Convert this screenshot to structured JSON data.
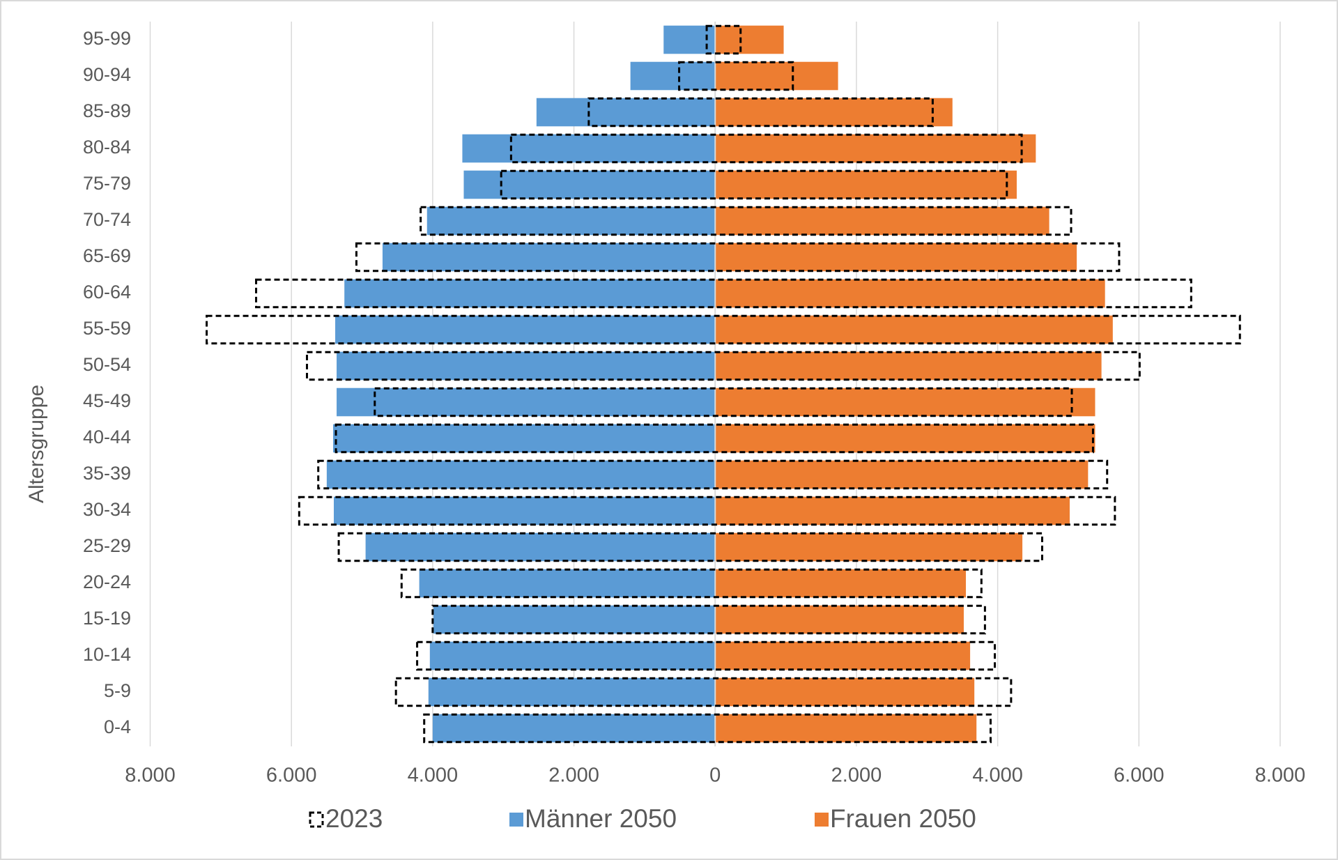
{
  "chart_data": {
    "type": "population-pyramid",
    "y_axis_label": "Altersgruppe",
    "categories": [
      "95-99",
      "90-94",
      "85-89",
      "80-84",
      "75-79",
      "70-74",
      "65-69",
      "60-64",
      "55-59",
      "50-54",
      "45-49",
      "40-44",
      "35-39",
      "30-34",
      "25-29",
      "20-24",
      "15-19",
      "10-14",
      "5-9",
      "0-4"
    ],
    "series": [
      {
        "name": "2023",
        "color": "#000000",
        "dashed": true,
        "values": [
          [
            -120,
            360
          ],
          [
            -510,
            1100
          ],
          [
            -1790,
            3080
          ],
          [
            -2890,
            4340
          ],
          [
            -3030,
            4130
          ],
          [
            -4170,
            5040
          ],
          [
            -5080,
            5720
          ],
          [
            -6500,
            6740
          ],
          [
            -7200,
            7430
          ],
          [
            -5780,
            6010
          ],
          [
            -4820,
            5050
          ],
          [
            -5370,
            5350
          ],
          [
            -5620,
            5550
          ],
          [
            -5890,
            5660
          ],
          [
            -5330,
            4630
          ],
          [
            -4440,
            3770
          ],
          [
            -4000,
            3820
          ],
          [
            -4220,
            3960
          ],
          [
            -4520,
            4190
          ],
          [
            -4120,
            3900
          ]
        ]
      },
      {
        "name": "Männer 2050",
        "color": "#5b9bd5",
        "values": [
          -730,
          -1200,
          -2530,
          -3580,
          -3560,
          -4080,
          -4710,
          -5250,
          -5380,
          -5360,
          -5360,
          -5410,
          -5500,
          -5400,
          -4950,
          -4190,
          -3990,
          -4040,
          -4060,
          -4000
        ]
      },
      {
        "name": "Frauen 2050",
        "color": "#ed7d31",
        "values": [
          970,
          1740,
          3360,
          4540,
          4270,
          4730,
          5120,
          5520,
          5630,
          5470,
          5380,
          5380,
          5280,
          5020,
          4350,
          3550,
          3520,
          3610,
          3670,
          3700
        ]
      }
    ],
    "xlim": [
      -8000,
      8000
    ],
    "xticks": [
      {
        "value": -8000,
        "label": "8.000"
      },
      {
        "value": -6000,
        "label": "6.000"
      },
      {
        "value": -4000,
        "label": "4.000"
      },
      {
        "value": -2000,
        "label": "2.000"
      },
      0,
      {
        "value": 2000,
        "label": "2.000"
      },
      {
        "value": 4000,
        "label": "4.000"
      },
      {
        "value": 6000,
        "label": "6.000"
      },
      {
        "value": 8000,
        "label": "8.000"
      }
    ],
    "grid": true,
    "legend": "bottom"
  }
}
